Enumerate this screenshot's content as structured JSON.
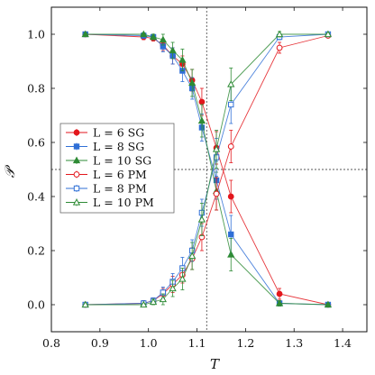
{
  "chart_data": {
    "type": "line",
    "xlabel": "T",
    "ylabel": "𝒫",
    "xlim": [
      0.8,
      1.45
    ],
    "ylim": [
      -0.1,
      1.1
    ],
    "xticks": [
      "0.8",
      "0.9",
      "1.0",
      "1.1",
      "1.2",
      "1.3",
      "1.4"
    ],
    "yticks": [
      "0.0",
      "0.2",
      "0.4",
      "0.6",
      "0.8",
      "1.0"
    ],
    "xtick_values": [
      0.8,
      0.9,
      1.0,
      1.1,
      1.2,
      1.3,
      1.4
    ],
    "ytick_values": [
      0.0,
      0.2,
      0.4,
      0.6,
      0.8,
      1.0
    ],
    "reference_lines": {
      "vertical_x": 1.12,
      "horizontal_y": 0.5
    },
    "grid": false,
    "legend_position": "center-left",
    "x": [
      0.87,
      0.99,
      1.01,
      1.03,
      1.05,
      1.07,
      1.09,
      1.11,
      1.14,
      1.17,
      1.27,
      1.37
    ],
    "series": [
      {
        "label_text": "L =  6  SG",
        "color": "#e3161c",
        "marker": "circle-filled",
        "values": [
          1.0,
          0.99,
          0.985,
          0.96,
          0.92,
          0.89,
          0.83,
          0.75,
          0.58,
          0.4,
          0.04,
          0.0
        ],
        "errors": [
          0.005,
          0.01,
          0.01,
          0.02,
          0.03,
          0.03,
          0.04,
          0.05,
          0.06,
          0.06,
          0.02,
          0.005
        ]
      },
      {
        "label_text": "L =  8  SG",
        "color": "#2f6fd6",
        "marker": "square-filled",
        "values": [
          1.0,
          0.995,
          0.99,
          0.955,
          0.92,
          0.865,
          0.8,
          0.655,
          0.46,
          0.26,
          0.005,
          0.0
        ],
        "errors": [
          0.005,
          0.01,
          0.01,
          0.02,
          0.03,
          0.04,
          0.04,
          0.05,
          0.07,
          0.07,
          0.01,
          0.005
        ]
      },
      {
        "label_text": "L = 10  SG",
        "color": "#2e8b35",
        "marker": "triangle-filled",
        "values": [
          1.0,
          1.0,
          0.99,
          0.98,
          0.94,
          0.905,
          0.82,
          0.68,
          0.42,
          0.185,
          0.005,
          0.0
        ],
        "errors": [
          0.005,
          0.005,
          0.01,
          0.02,
          0.03,
          0.04,
          0.05,
          0.06,
          0.07,
          0.06,
          0.01,
          0.005
        ]
      },
      {
        "label_text": "L =  6  PM",
        "color": "#e3161c",
        "marker": "circle-open",
        "values": [
          0.0,
          0.005,
          0.015,
          0.04,
          0.075,
          0.11,
          0.17,
          0.25,
          0.41,
          0.585,
          0.95,
          0.995
        ],
        "errors": [
          0.005,
          0.01,
          0.01,
          0.02,
          0.03,
          0.03,
          0.04,
          0.05,
          0.06,
          0.06,
          0.02,
          0.005
        ]
      },
      {
        "label_text": "L =  8  PM",
        "color": "#2f6fd6",
        "marker": "square-open",
        "values": [
          0.0,
          0.005,
          0.015,
          0.045,
          0.085,
          0.135,
          0.2,
          0.34,
          0.545,
          0.74,
          0.99,
          1.0
        ],
        "errors": [
          0.005,
          0.01,
          0.01,
          0.02,
          0.03,
          0.04,
          0.04,
          0.05,
          0.07,
          0.07,
          0.01,
          0.005
        ]
      },
      {
        "label_text": "L = 10  PM",
        "color": "#2e8b35",
        "marker": "triangle-open",
        "values": [
          0.0,
          0.0,
          0.01,
          0.02,
          0.06,
          0.095,
          0.18,
          0.315,
          0.575,
          0.815,
          1.0,
          1.0
        ],
        "errors": [
          0.005,
          0.005,
          0.01,
          0.02,
          0.03,
          0.04,
          0.05,
          0.06,
          0.07,
          0.06,
          0.01,
          0.005
        ]
      }
    ]
  }
}
